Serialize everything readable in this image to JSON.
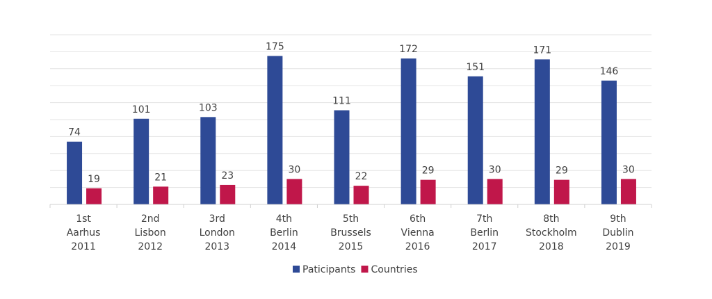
{
  "chart_data": {
    "type": "bar",
    "title": "",
    "xlabel": "",
    "ylabel": "",
    "ylim": [
      0,
      200
    ],
    "grid": true,
    "grid_step": 20,
    "legend_position": "bottom",
    "categories": [
      [
        "1st",
        "Aarhus",
        "2011"
      ],
      [
        "2nd",
        "Lisbon",
        "2012"
      ],
      [
        "3rd",
        "London",
        "2013"
      ],
      [
        "4th",
        "Berlin",
        "2014"
      ],
      [
        "5th",
        "Brussels",
        "2015"
      ],
      [
        "6th",
        "Vienna",
        "2016"
      ],
      [
        "7th",
        "Berlin",
        "2017"
      ],
      [
        "8th",
        "Stockholm",
        "2018"
      ],
      [
        "9th",
        "Dublin",
        "2019"
      ]
    ],
    "series": [
      {
        "name": "Paticipants",
        "color": "#2E4A96",
        "values": [
          74,
          101,
          103,
          175,
          111,
          172,
          151,
          171,
          146
        ]
      },
      {
        "name": "Countries",
        "color": "#C0174A",
        "values": [
          19,
          21,
          23,
          30,
          22,
          29,
          30,
          29,
          30
        ]
      }
    ]
  }
}
